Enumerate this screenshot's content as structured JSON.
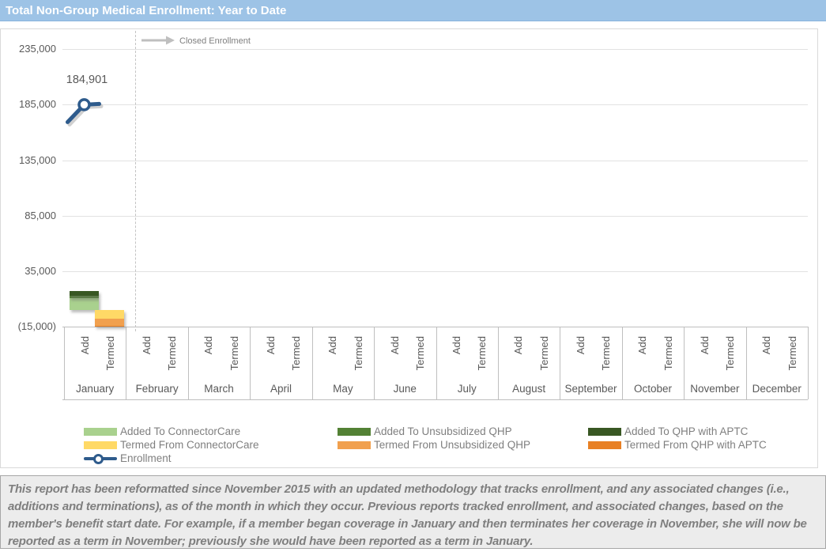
{
  "title_bar": {
    "text": "Total Non-Group Medical Enrollment: Year to Date",
    "bg_color": "#9DC3E6"
  },
  "chart_data": {
    "type": "bar",
    "title": "Total Non-Group Medical Enrollment: Year to Date",
    "categories": [
      "January",
      "February",
      "March",
      "April",
      "May",
      "June",
      "July",
      "August",
      "September",
      "October",
      "November",
      "December"
    ],
    "sub_categories": [
      "Add",
      "Termed"
    ],
    "y_axis": {
      "min": -15000,
      "max": 235000,
      "step": 50000,
      "tick_values": [
        235000,
        185000,
        135000,
        85000,
        35000,
        -15000
      ],
      "tick_labels": [
        "235,000",
        "185,000",
        "135,000",
        "85,000",
        "35,000",
        "(15,000)"
      ]
    },
    "grid": true,
    "legend_position": "bottom",
    "series": [
      {
        "id": "added_connectorcare",
        "name": "Added To ConnectorCare",
        "color": "#A9D18E",
        "stack": "add",
        "values": [
          10400,
          0,
          0,
          0,
          0,
          0,
          0,
          0,
          0,
          0,
          0,
          0
        ]
      },
      {
        "id": "added_unsub_qhp",
        "name": "Added To Unsubsidized QHP",
        "color": "#538135",
        "stack": "add",
        "values": [
          2300,
          0,
          0,
          0,
          0,
          0,
          0,
          0,
          0,
          0,
          0,
          0
        ]
      },
      {
        "id": "added_qhp_aptc",
        "name": "Added To QHP with APTC",
        "color": "#385723",
        "stack": "add",
        "values": [
          4400,
          0,
          0,
          0,
          0,
          0,
          0,
          0,
          0,
          0,
          0,
          0
        ]
      },
      {
        "id": "termed_connectorcare",
        "name": "Termed From ConnectorCare",
        "color": "#FFD966",
        "stack": "termed",
        "values": [
          -7500,
          0,
          0,
          0,
          0,
          0,
          0,
          0,
          0,
          0,
          0,
          0
        ]
      },
      {
        "id": "termed_unsub_qhp",
        "name": "Termed From Unsubsidized QHP",
        "color": "#F1A04E",
        "stack": "termed",
        "values": [
          -6600,
          0,
          0,
          0,
          0,
          0,
          0,
          0,
          0,
          0,
          0,
          0
        ]
      },
      {
        "id": "termed_qhp_aptc",
        "name": "Termed From QHP with APTC",
        "color": "#E88024",
        "stack": "termed",
        "values": [
          -500,
          0,
          0,
          0,
          0,
          0,
          0,
          0,
          0,
          0,
          0,
          0
        ]
      }
    ],
    "line_series": {
      "name": "Enrollment",
      "color": "#2E5B8C",
      "values": [
        184901,
        null,
        null,
        null,
        null,
        null,
        null,
        null,
        null,
        null,
        null,
        null
      ],
      "data_labels": [
        "184,901",
        null,
        null,
        null,
        null,
        null,
        null,
        null,
        null,
        null,
        null,
        null
      ]
    },
    "annotation": {
      "label": "Closed Enrollment"
    }
  },
  "legend": {
    "entries": [
      {
        "label": "Added To ConnectorCare",
        "color": "#A9D18E",
        "type": "box",
        "col": 0,
        "row": 0
      },
      {
        "label": "Added To Unsubsidized QHP",
        "color": "#538135",
        "type": "box",
        "col": 1,
        "row": 0
      },
      {
        "label": "Added To QHP with APTC",
        "color": "#385723",
        "type": "box",
        "col": 2,
        "row": 0
      },
      {
        "label": "Termed From ConnectorCare",
        "color": "#FFD966",
        "type": "box",
        "col": 0,
        "row": 1
      },
      {
        "label": "Termed From Unsubsidized QHP",
        "color": "#F1A04E",
        "type": "box",
        "col": 1,
        "row": 1
      },
      {
        "label": "Termed From QHP with APTC",
        "color": "#E88024",
        "type": "box",
        "col": 2,
        "row": 1
      },
      {
        "label": "Enrollment",
        "color": "#2E5B8C",
        "type": "line",
        "col": 0,
        "row": 2
      }
    ]
  },
  "footnote": {
    "text": "This report has been reformatted since November 2015 with an updated methodology that tracks enrollment, and any associated changes (i.e., additions and terminations), as of the month in which they occur.  Previous reports tracked enrollment, and associated changes, based on the member's benefit start date.  For example, if a member began coverage in January and then terminates her coverage in November, she will now be reported as a term in November; previously she would have been reported as a term in January."
  }
}
